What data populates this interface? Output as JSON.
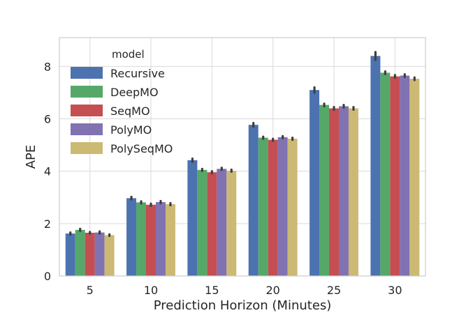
{
  "chart_data": {
    "type": "bar",
    "xlabel": "Prediction Horizon (Minutes)",
    "ylabel": "APE",
    "categories": [
      "5",
      "10",
      "15",
      "20",
      "25",
      "30"
    ],
    "ylim": [
      0,
      9.1
    ],
    "yticks": [
      0,
      2,
      4,
      6,
      8
    ],
    "grid": true,
    "legend": {
      "title": "model",
      "placement": "top-left"
    },
    "series": [
      {
        "name": "Recursive",
        "color": "#4c72b0",
        "values": [
          1.62,
          2.97,
          4.42,
          5.77,
          7.1,
          8.4
        ],
        "err": [
          0.04,
          0.05,
          0.06,
          0.07,
          0.1,
          0.15
        ]
      },
      {
        "name": "DeepMO",
        "color": "#55a868",
        "values": [
          1.76,
          2.81,
          4.05,
          5.28,
          6.53,
          7.76
        ],
        "err": [
          0.04,
          0.04,
          0.04,
          0.04,
          0.05,
          0.05
        ]
      },
      {
        "name": "SeqMO",
        "color": "#c44e52",
        "values": [
          1.65,
          2.72,
          3.96,
          5.2,
          6.4,
          7.62
        ],
        "err": [
          0.03,
          0.04,
          0.04,
          0.04,
          0.05,
          0.05
        ]
      },
      {
        "name": "PolyMO",
        "color": "#8172b2",
        "values": [
          1.66,
          2.82,
          4.09,
          5.3,
          6.48,
          7.65
        ],
        "err": [
          0.04,
          0.04,
          0.04,
          0.04,
          0.05,
          0.05
        ]
      },
      {
        "name": "PolySeqMO",
        "color": "#ccb974",
        "values": [
          1.56,
          2.74,
          4.02,
          5.24,
          6.4,
          7.53
        ],
        "err": [
          0.03,
          0.04,
          0.04,
          0.04,
          0.05,
          0.05
        ]
      }
    ]
  }
}
